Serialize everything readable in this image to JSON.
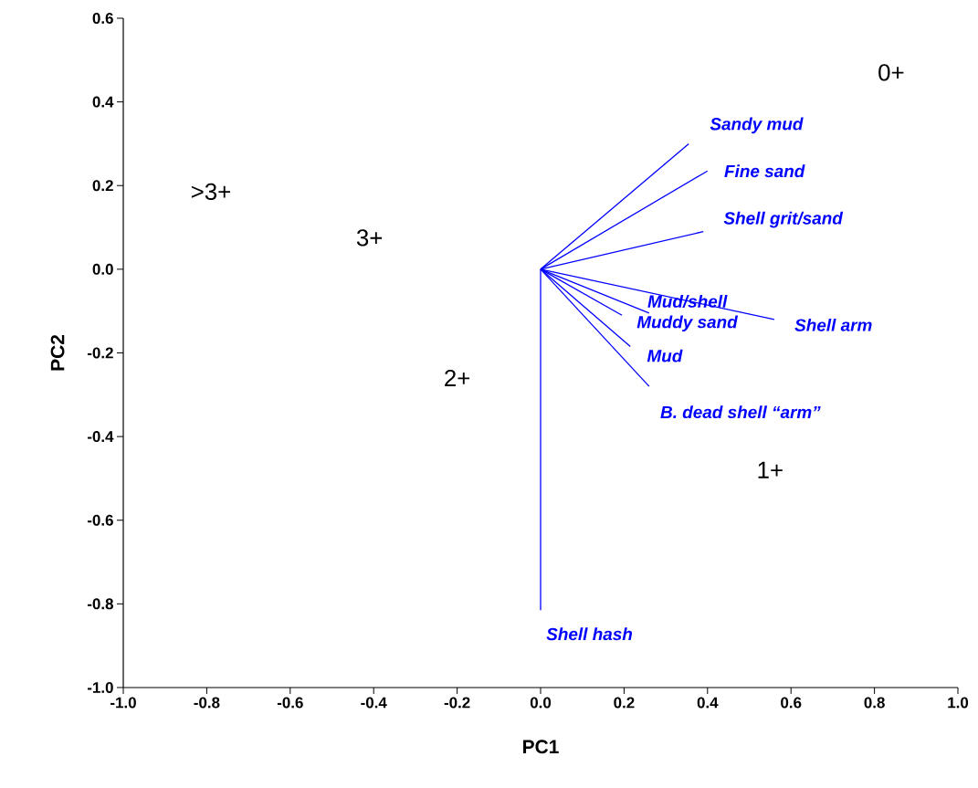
{
  "chart_data": {
    "type": "line",
    "xlabel": "PC1",
    "ylabel": "PC2",
    "xlim": [
      -1.0,
      1.0
    ],
    "ylim": [
      -1.0,
      0.6
    ],
    "xticks": [
      {
        "value": -1.0,
        "label": "-1.0"
      },
      {
        "value": -0.8,
        "label": "-0.8"
      },
      {
        "value": -0.6,
        "label": "-0.6"
      },
      {
        "value": -0.4,
        "label": "-0.4"
      },
      {
        "value": -0.2,
        "label": "-0.2"
      },
      {
        "value": 0.0,
        "label": "0.0"
      },
      {
        "value": 0.2,
        "label": "0.2"
      },
      {
        "value": 0.4,
        "label": "0.4"
      },
      {
        "value": 0.6,
        "label": "0.6"
      },
      {
        "value": 0.8,
        "label": "0.8"
      },
      {
        "value": 1.0,
        "label": "1.0"
      }
    ],
    "yticks": [
      {
        "value": -1.0,
        "label": "-1.0"
      },
      {
        "value": -0.8,
        "label": "-0.8"
      },
      {
        "value": -0.6,
        "label": "-0.6"
      },
      {
        "value": -0.4,
        "label": "-0.4"
      },
      {
        "value": -0.2,
        "label": "-0.2"
      },
      {
        "value": 0.0,
        "label": "0.0"
      },
      {
        "value": 0.2,
        "label": "0.2"
      },
      {
        "value": 0.4,
        "label": "0.4"
      },
      {
        "value": 0.6,
        "label": "0.6"
      }
    ],
    "grid": false,
    "marker": "none",
    "line_style": "solid",
    "series": [
      {
        "name": "Sandy mud",
        "color": "#0000ff",
        "x": [
          0,
          0.355
        ],
        "values": [
          0,
          0.3
        ]
      },
      {
        "name": "Fine sand",
        "color": "#0000ff",
        "x": [
          0,
          0.4
        ],
        "values": [
          0,
          0.235
        ]
      },
      {
        "name": "Shell grit/sand",
        "color": "#0000ff",
        "x": [
          0,
          0.39
        ],
        "values": [
          0,
          0.09
        ]
      },
      {
        "name": "Mud/shell",
        "color": "#0000ff",
        "x": [
          0,
          0.26
        ],
        "values": [
          0,
          -0.105
        ]
      },
      {
        "name": "Shell arm",
        "color": "#0000ff",
        "x": [
          0,
          0.56
        ],
        "values": [
          0,
          -0.12
        ]
      },
      {
        "name": "Muddy sand",
        "color": "#0000ff",
        "x": [
          0,
          0.195
        ],
        "values": [
          0,
          -0.11
        ]
      },
      {
        "name": "Mud",
        "color": "#0000ff",
        "x": [
          0,
          0.215
        ],
        "values": [
          0,
          -0.185
        ]
      },
      {
        "name": "B. dead shell “arm”",
        "color": "#0000ff",
        "x": [
          0,
          0.26
        ],
        "values": [
          0,
          -0.28
        ]
      },
      {
        "name": "Shell hash",
        "color": "#0000ff",
        "x": [
          0,
          0.0
        ],
        "values": [
          0,
          -0.815
        ]
      }
    ],
    "annotations": [
      "0+",
      "1+",
      "2+",
      "3+",
      ">3+"
    ]
  }
}
